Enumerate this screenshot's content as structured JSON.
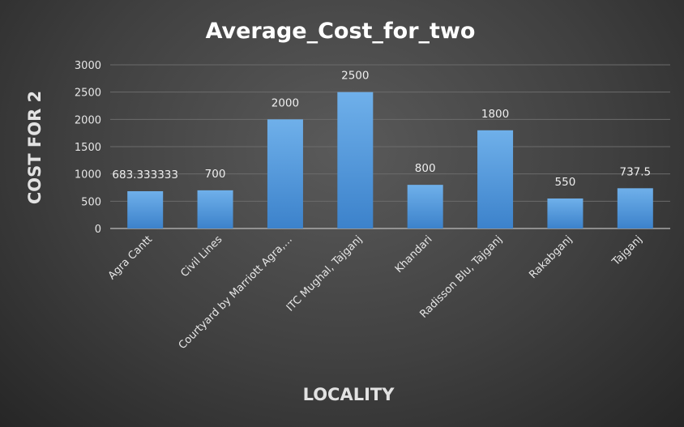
{
  "chart_data": {
    "type": "bar",
    "title": "Average_Cost_for_two",
    "xlabel": "LOCALITY",
    "ylabel": "COST FOR 2",
    "categories": [
      "Agra Cantt",
      "Civil Lines",
      "Courtyard by Marriott Agra,...",
      "ITC Mughal, Tajganj",
      "Khandari",
      "Radisson Blu, Tajganj",
      "Rakabganj",
      "Tajganj"
    ],
    "values": [
      683.333333,
      700,
      2000,
      2500,
      800,
      1800,
      550,
      737.5
    ],
    "data_labels": [
      "683.333333",
      "700",
      "2000",
      "2500",
      "800",
      "1800",
      "550",
      "737.5"
    ],
    "ylim": [
      0,
      3000
    ],
    "yticks": [
      0,
      500,
      1000,
      1500,
      2000,
      2500,
      3000
    ],
    "grid": true,
    "legend": "none",
    "colors": {
      "bar_top": "#6fb0ea",
      "bar_bottom": "#3c82cb",
      "grid": "#6b6b6b",
      "axis": "#bcbcbc",
      "text": "#e6e6e6",
      "title": "#ffffff"
    }
  }
}
